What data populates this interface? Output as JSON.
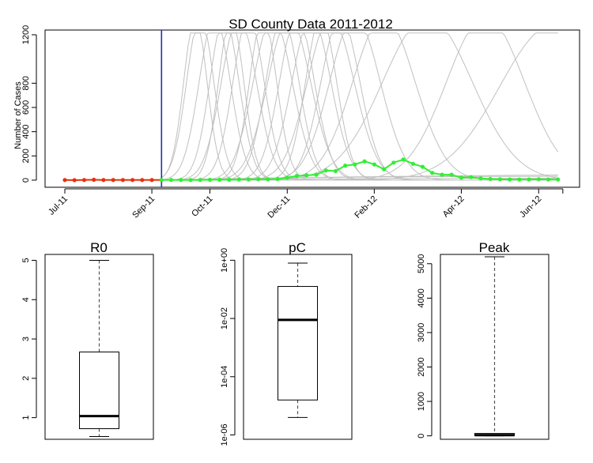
{
  "chart_data": [
    {
      "type": "line",
      "title": "SD County Data 2011-2012",
      "ylabel": "Number of Cases",
      "xlabel": "",
      "ylim": [
        0,
        1250
      ],
      "y_ticks": [
        0,
        200,
        400,
        600,
        800,
        1200
      ],
      "x_ticks": [
        {
          "label": "Jul-11",
          "week": 0
        },
        {
          "label": "Sep-11",
          "week": 9
        },
        {
          "label": "Oct-11",
          "week": 15
        },
        {
          "label": "Dec-11",
          "week": 23
        },
        {
          "label": "Feb-12",
          "week": 32
        },
        {
          "label": "Apr-12",
          "week": 41
        },
        {
          "label": "Jun-12",
          "week": 49
        },
        {
          "label": "",
          "week": 51.5
        }
      ],
      "forecast_start_week": 10,
      "observed_series": {
        "color": "#e8300e",
        "x": [
          0,
          1,
          2,
          3,
          4,
          5,
          6,
          7,
          8,
          9,
          10
        ],
        "y": [
          1,
          0,
          1,
          3,
          1,
          1,
          1,
          1,
          1,
          1,
          1
        ]
      },
      "fitted_series": {
        "color": "#33ee33",
        "x": [
          10,
          11,
          12,
          13,
          14,
          15,
          16,
          17,
          18,
          19,
          20,
          21,
          22,
          23,
          24,
          25,
          26,
          27,
          28,
          29,
          30,
          31,
          32,
          33,
          34,
          35,
          36,
          37,
          38,
          39,
          40,
          41,
          42,
          43,
          44,
          45,
          46,
          47,
          48,
          49,
          50,
          51
        ],
        "y": [
          1,
          2,
          2,
          1,
          2,
          3,
          4,
          3,
          5,
          6,
          8,
          7,
          10,
          20,
          35,
          40,
          45,
          80,
          75,
          120,
          130,
          155,
          130,
          90,
          145,
          170,
          135,
          110,
          60,
          45,
          45,
          20,
          25,
          15,
          10,
          8,
          6,
          5,
          6,
          7,
          6,
          5
        ]
      },
      "grey_color": "#c0c0c0",
      "axis_color": "#2233aa"
    },
    {
      "type": "box",
      "title": "R0",
      "scale": "linear",
      "ylim": [
        0.45,
        5.15
      ],
      "y_ticks": [
        1,
        2,
        3,
        4,
        5
      ],
      "tick_labels": [
        "1",
        "2",
        "3",
        "4",
        "5"
      ],
      "whisker_low": 0.52,
      "q1": 0.72,
      "median": 1.04,
      "q3": 2.67,
      "whisker_high": 5.0
    },
    {
      "type": "box",
      "title": "pC",
      "scale": "log10",
      "ylim": [
        -6.15,
        0.2
      ],
      "y_ticks": [
        0,
        -2,
        -4,
        -6
      ],
      "tick_labels": [
        "1e+00",
        "1e-02",
        "1e-04",
        "1e-06"
      ],
      "whisker_low": -5.4,
      "q1": -4.8,
      "median": -2.05,
      "q3": -0.9,
      "whisker_high": -0.1
    },
    {
      "type": "box",
      "title": "Peak",
      "scale": "linear",
      "ylim": [
        -100,
        5270
      ],
      "y_ticks": [
        0,
        1000,
        2000,
        3000,
        4000,
        5000
      ],
      "tick_labels": [
        "0",
        "1000",
        "2000",
        "3000",
        "4000",
        "5000"
      ],
      "whisker_low": 0,
      "q1": 5,
      "median": 20,
      "q3": 70,
      "whisker_high": 5200
    }
  ]
}
